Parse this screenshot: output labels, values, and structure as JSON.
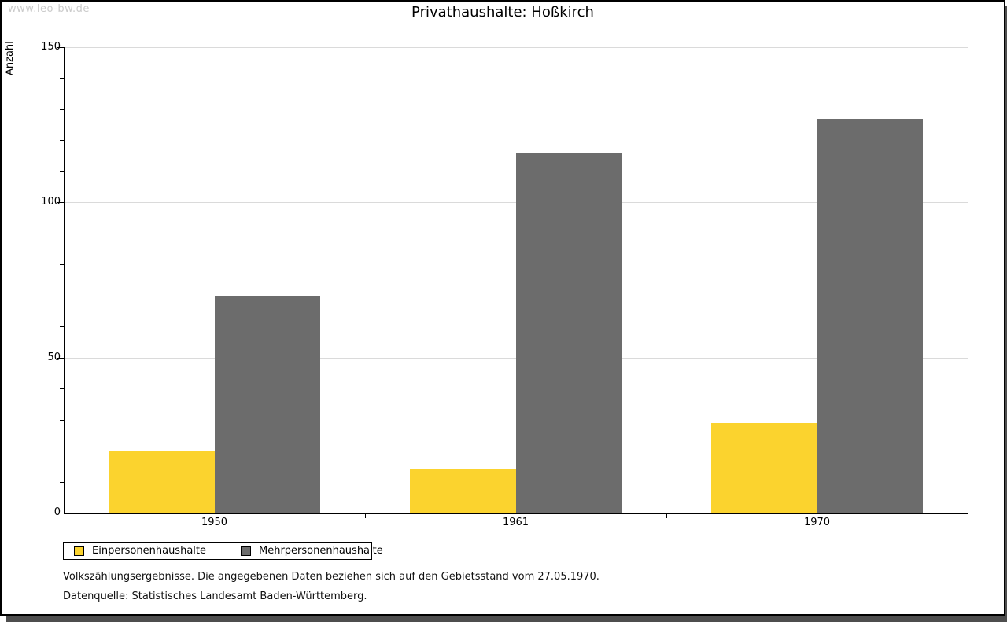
{
  "watermark": "www.leo-bw.de",
  "title": "Privathaushalte: Hoßkirch",
  "chart_data": {
    "type": "bar",
    "categories": [
      "1950",
      "1961",
      "1970"
    ],
    "series": [
      {
        "name": "Einpersonenhaushalte",
        "color": "#fbd32e",
        "values": [
          20,
          14,
          29
        ]
      },
      {
        "name": "Mehrpersonenhaushalte",
        "color": "#6c6c6c",
        "values": [
          70,
          116,
          127
        ]
      }
    ],
    "xlabel": "",
    "ylabel": "Anzahl",
    "ylim": [
      0,
      150
    ],
    "yticks": [
      0,
      50,
      100,
      150
    ],
    "minor_tick_step": 10,
    "grid": "horizontal-major",
    "gridline_color": "#dadada",
    "legend_position": "bottom-left"
  },
  "footer": {
    "line1": "Volkszählungsergebnisse. Die angegebenen Daten beziehen sich auf den Gebietsstand vom 27.05.1970.",
    "line2": "Datenquelle: Statistisches Landesamt Baden-Württemberg."
  }
}
